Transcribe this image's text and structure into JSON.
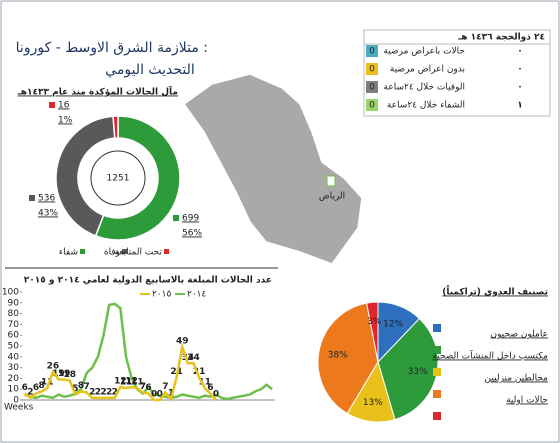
{
  "title": "متلازمة الشرق الاوسط - كورونا :",
  "subtitle": "التحديث اليومي",
  "status": {
    "date": "٢٤ ذوالحجة ١٤٣٦ هـ",
    "rows": [
      {
        "label": "حالات باعراض مرضية",
        "badge": 0,
        "count": "٠",
        "color": "#4bacc6"
      },
      {
        "label": "بدون اعراض مرضية",
        "badge": 0,
        "count": "٠",
        "color": "#e8c21a"
      },
      {
        "label": "الوفيات خلال ٢٤ساعة",
        "badge": 0,
        "count": "٠",
        "color": "#7f7f7f"
      },
      {
        "label": "الشفاء خلال ٢٤ساعة",
        "badge": 0,
        "count": "١",
        "color": "#9bd36a"
      }
    ]
  },
  "map_label": "الرياض",
  "chart_data": [
    {
      "type": "donut",
      "title": "مآل الحالات المؤكدة منذ عام ١٤٣٣هـ",
      "total": 1251,
      "categories": [
        "شفاء",
        "وفاة",
        "تحت المتابعة"
      ],
      "values": [
        699,
        536,
        16
      ],
      "percent_labels": [
        "56%",
        "43%",
        "1%"
      ],
      "colors": [
        "#2e9b3a",
        "#595959",
        "#e0262b"
      ]
    },
    {
      "type": "line",
      "title": "عدد الحالات المبلغة بالاسابيع الدولية لعامي ٢٠١٤ و ٢٠١٥",
      "x_label": "Weeks",
      "categories": [
        null,
        null,
        null,
        null,
        null,
        null,
        null,
        null,
        null,
        null,
        null,
        null,
        null,
        null,
        null,
        null,
        null,
        null,
        null,
        null,
        null,
        null,
        null,
        null,
        null,
        null,
        null,
        null,
        null,
        null,
        null,
        null,
        null,
        null,
        null,
        null,
        null,
        null,
        null,
        null,
        null,
        null,
        null,
        null,
        null
      ],
      "series": [
        {
          "name": "٢٠١٤",
          "color": "#6cc04a",
          "values": [
            5,
            3,
            2,
            4,
            3,
            2,
            5,
            3,
            4,
            6,
            10,
            25,
            30,
            40,
            60,
            88,
            89,
            85,
            40,
            20,
            10,
            6,
            12,
            5,
            4,
            3,
            2,
            3,
            5,
            4,
            3,
            2,
            4,
            3,
            5,
            2,
            1,
            2,
            3,
            4,
            5,
            8,
            10,
            14,
            10
          ]
        },
        {
          "name": "٢٠١٥",
          "color": "#e8c21a",
          "values": [
            6,
            2,
            6,
            8,
            11,
            26,
            19,
            19,
            18,
            5,
            8,
            7,
            2,
            2,
            2,
            2,
            2,
            12,
            11,
            12,
            11,
            7,
            6,
            0,
            0,
            7,
            1,
            21,
            49,
            34,
            34,
            21,
            11,
            6,
            0,
            null,
            null,
            null,
            null,
            null,
            null,
            null,
            null,
            null,
            null
          ],
          "labels": true
        }
      ],
      "ylim": [
        0,
        100
      ],
      "yticks": [
        0,
        10,
        20,
        30,
        40,
        50,
        60,
        70,
        80,
        90,
        100
      ],
      "grid": false
    },
    {
      "type": "pie",
      "title": "تصنيف العدوى (تراكمياً)",
      "categories": [
        "عاملون صحيون",
        "مكتسب داخل المنشآت الصحية",
        "مخالطين منزليين",
        "حالات اولية",
        null
      ],
      "values": [
        12,
        33,
        13,
        38,
        3
      ],
      "value_labels": [
        "12%",
        "33%",
        "13%",
        "38%",
        "3%"
      ],
      "colors": [
        "#2f6fc0",
        "#2e9b3a",
        "#e8c21a",
        "#ec7a1c",
        "#e0262b"
      ]
    }
  ]
}
